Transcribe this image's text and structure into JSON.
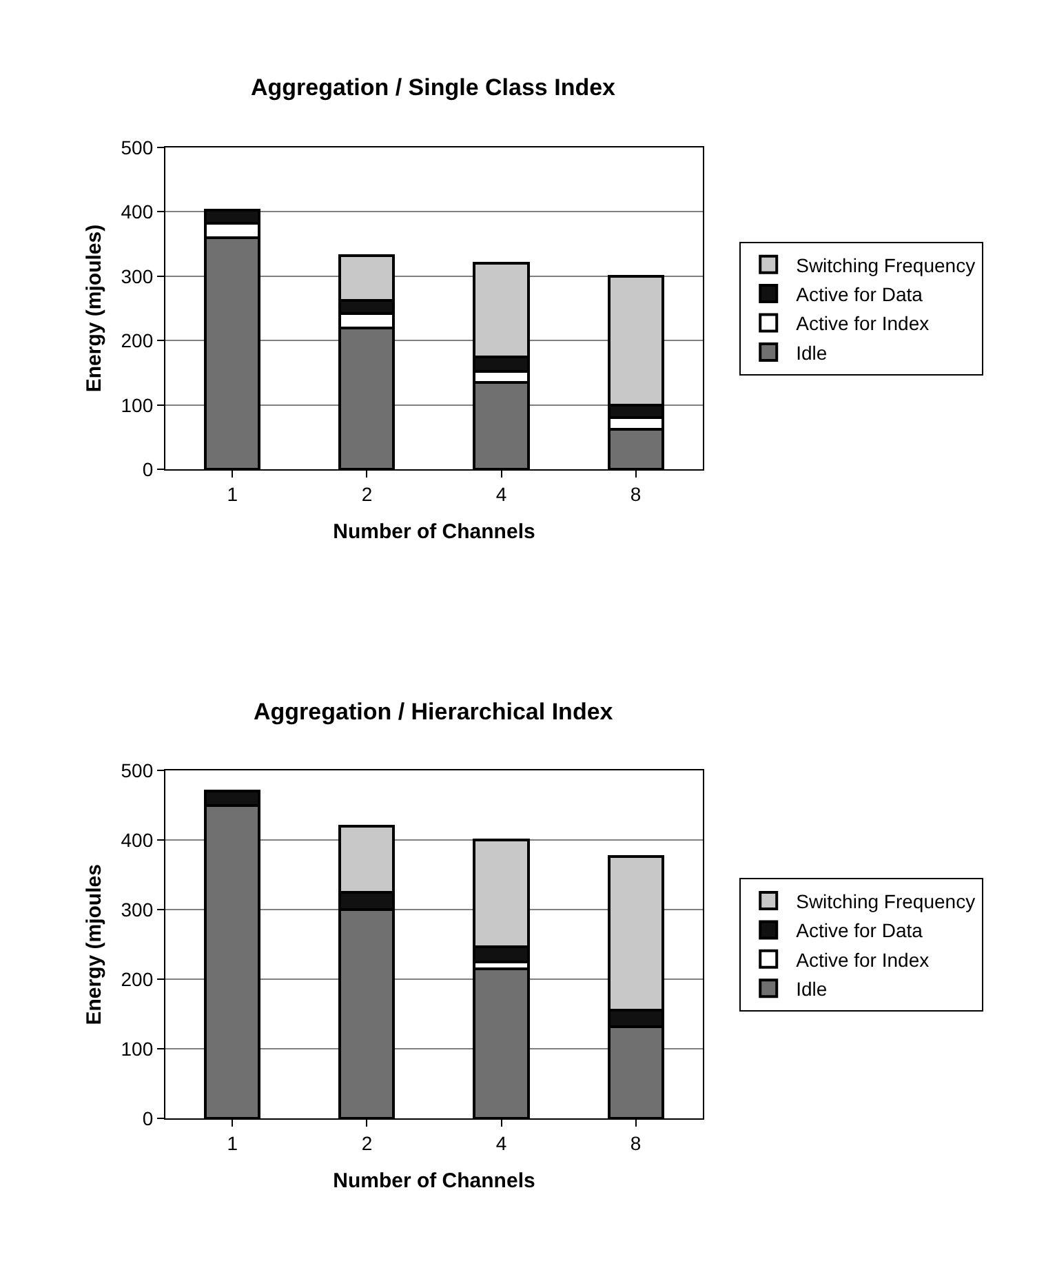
{
  "chart_data": [
    {
      "type": "bar",
      "title": "Aggregation / Single Class Index",
      "xlabel": "Number of Channels",
      "ylabel": "Energy (mjoules)",
      "categories": [
        "1",
        "2",
        "4",
        "8"
      ],
      "stacked": true,
      "ylim": [
        0,
        500
      ],
      "yticks": [
        0,
        100,
        200,
        300,
        400,
        500
      ],
      "grid": "y",
      "legend": "right",
      "series": [
        {
          "name": "Idle",
          "color": "#707070",
          "values": [
            360,
            220,
            135,
            62
          ]
        },
        {
          "name": "Active for Index",
          "color": "#ffffff",
          "values": [
            22,
            22,
            17,
            18
          ]
        },
        {
          "name": "Active for Data",
          "color": "#111111",
          "values": [
            20,
            20,
            23,
            20
          ]
        },
        {
          "name": "Switching Frequency",
          "color": "#c8c8c8",
          "values": [
            0,
            70,
            145,
            200
          ]
        }
      ]
    },
    {
      "type": "bar",
      "title": "Aggregation / Hierarchical Index",
      "xlabel": "Number of Channels",
      "ylabel": "Energy (mjoules",
      "categories": [
        "1",
        "2",
        "4",
        "8"
      ],
      "stacked": true,
      "ylim": [
        0,
        500
      ],
      "yticks": [
        0,
        100,
        200,
        300,
        400,
        500
      ],
      "grid": "y",
      "legend": "right",
      "series": [
        {
          "name": "Idle",
          "color": "#707070",
          "values": [
            450,
            300,
            215,
            132
          ]
        },
        {
          "name": "Active for Index",
          "color": "#ffffff",
          "values": [
            0,
            0,
            10,
            0
          ]
        },
        {
          "name": "Active for Data",
          "color": "#111111",
          "values": [
            20,
            25,
            22,
            24
          ]
        },
        {
          "name": "Switching Frequency",
          "color": "#c8c8c8",
          "values": [
            0,
            95,
            153,
            220
          ]
        }
      ]
    }
  ]
}
